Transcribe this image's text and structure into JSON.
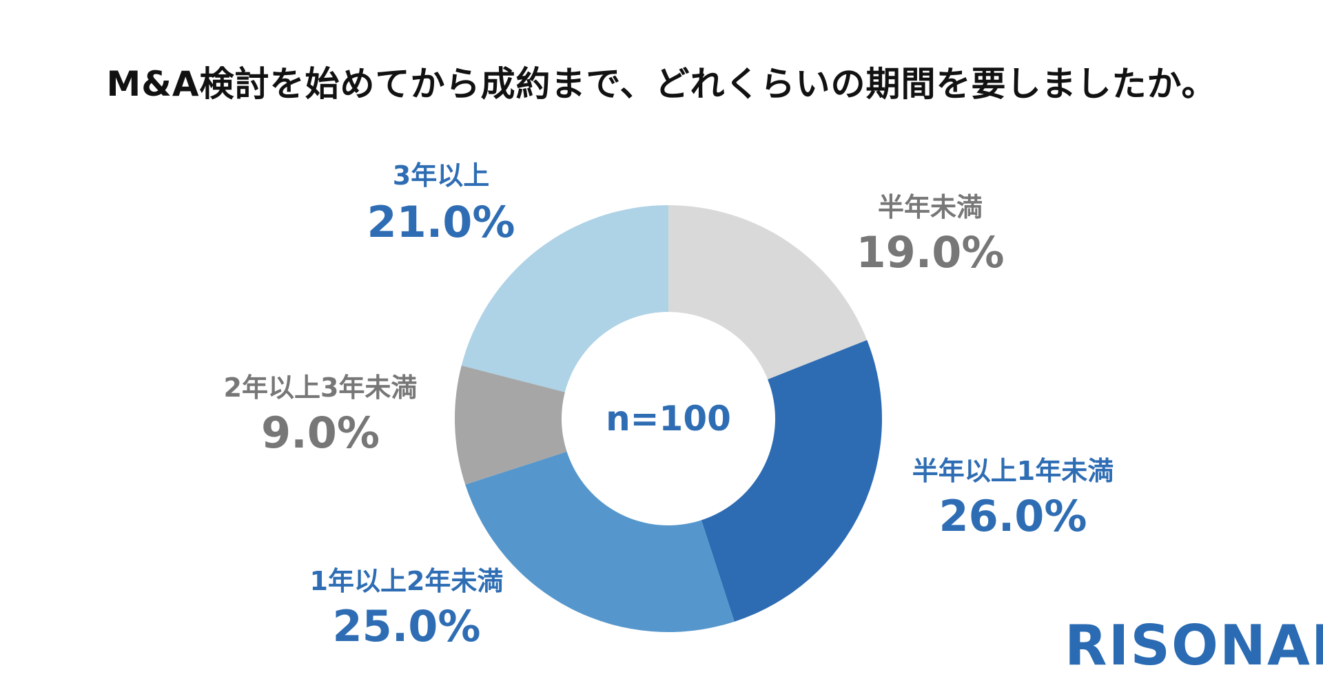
{
  "title": "M&A検討を始めてから成約まで、どれくらいの期間を要しましたか。",
  "logo": "RISONAL",
  "colors": {
    "brand": "#2A6BB3",
    "label_blue": "#2E6DB4",
    "label_gray": "#777777"
  },
  "chart_data": {
    "type": "pie",
    "style": "donut",
    "center_label": "n=100",
    "unit": "%",
    "slices": [
      {
        "label": "半年未満",
        "value": 19.0,
        "value_text": "19.0%",
        "color": "#D9D9D9",
        "label_color": "#777777"
      },
      {
        "label": "半年以上1年未満",
        "value": 26.0,
        "value_text": "26.0%",
        "color": "#2D6BB3",
        "label_color": "#2E6DB4"
      },
      {
        "label": "1年以上2年未満",
        "value": 25.0,
        "value_text": "25.0%",
        "color": "#5597CC",
        "label_color": "#2E6DB4"
      },
      {
        "label": "2年以上3年未満",
        "value": 9.0,
        "value_text": "9.0%",
        "color": "#A6A6A6",
        "label_color": "#777777"
      },
      {
        "label": "3年以上",
        "value": 21.0,
        "value_text": "21.0%",
        "color": "#AED2E6",
        "label_color": "#2E6DB4"
      }
    ]
  }
}
